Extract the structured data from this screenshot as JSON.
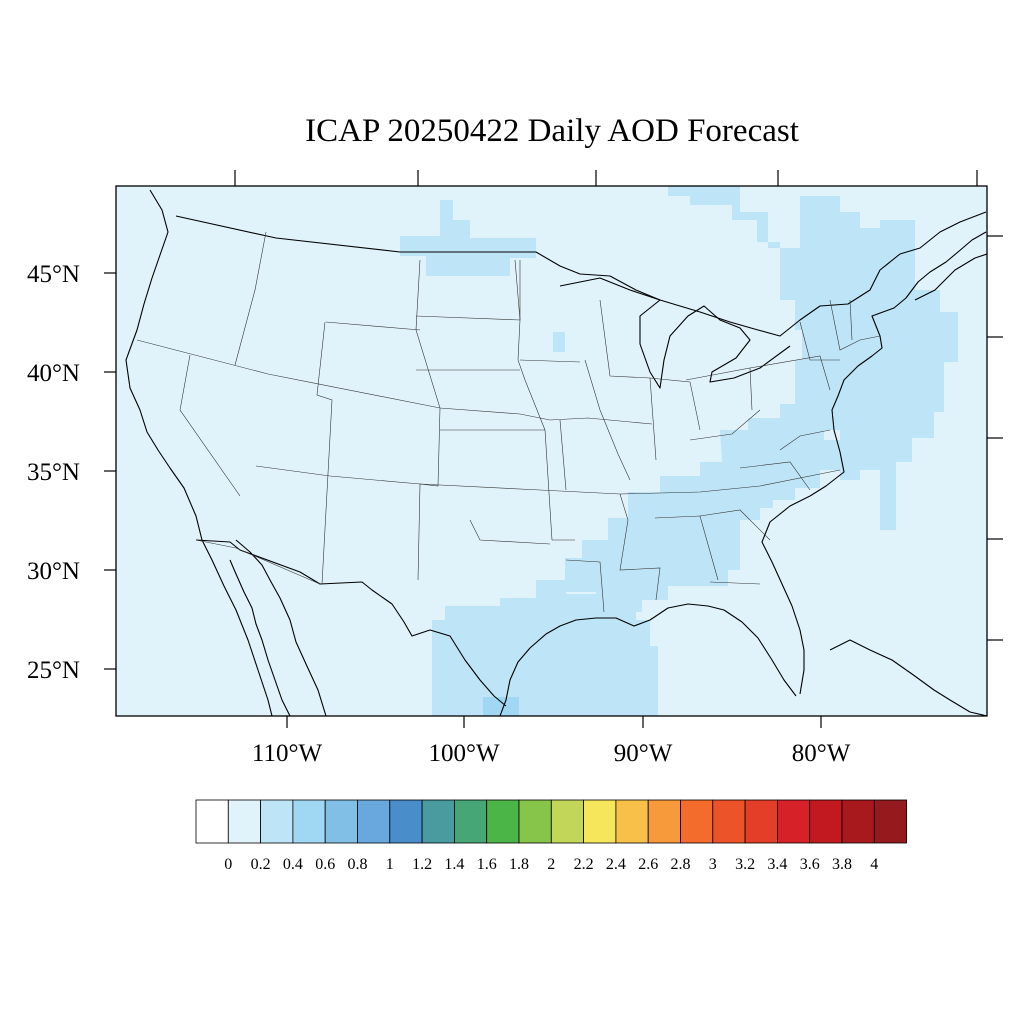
{
  "title": "ICAP 20250422 Daily AOD Forecast",
  "map": {
    "region": "Contiguous United States",
    "variable": "Aerosol Optical Depth (AOD)",
    "lat_labels": [
      "45°N",
      "40°N",
      "35°N",
      "30°N",
      "25°N"
    ],
    "lon_labels": [
      "110°W",
      "100°W",
      "90°W",
      "80°W"
    ],
    "lat_range": [
      22.5,
      49.3
    ],
    "lon_range": [
      -119.0,
      -70.0
    ]
  },
  "aod_regions": [
    {
      "name": "background",
      "level": "0-0.2"
    },
    {
      "name": "northeast-and-atlantic-plume",
      "level": "0.2-0.4"
    },
    {
      "name": "southeast-states-plume",
      "level": "0.2-0.4"
    },
    {
      "name": "south-texas-gulf-plume",
      "level": "0.2-0.4"
    },
    {
      "name": "north-dakota-band",
      "level": "0.2-0.4"
    },
    {
      "name": "texas-gulf-coast-spot",
      "level": "0.4-0.6"
    }
  ],
  "colorbar": {
    "labels": [
      "0",
      "0.2",
      "0.4",
      "0.6",
      "0.8",
      "1",
      "1.2",
      "1.4",
      "1.6",
      "1.8",
      "2",
      "2.2",
      "2.4",
      "2.6",
      "2.8",
      "3",
      "3.2",
      "3.4",
      "3.6",
      "3.8",
      "4"
    ],
    "colors": [
      "#ffffff",
      "#e0f3fb",
      "#bde5f7",
      "#a0d8f4",
      "#82bfe6",
      "#69a8dc",
      "#4a8dcb",
      "#4a9b9f",
      "#47a675",
      "#4bb547",
      "#86c54a",
      "#c2d75a",
      "#f6e65c",
      "#f8c049",
      "#f69a3b",
      "#f36c2b",
      "#ec5329",
      "#e43e28",
      "#d72128",
      "#c1191f",
      "#a8191e",
      "#951a1d"
    ]
  }
}
